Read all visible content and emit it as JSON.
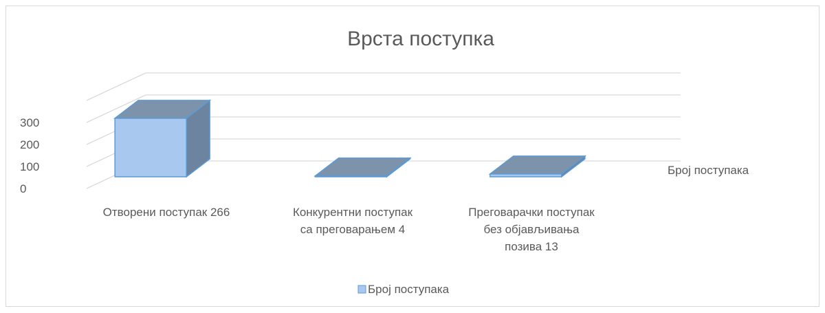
{
  "chart_data": {
    "type": "bar",
    "title": "Врста поступка",
    "categories": [
      [
        "Отворени поступак 266"
      ],
      [
        "Конкурентни поступак",
        "са преговарањем 4"
      ],
      [
        "Преговарачки поступак",
        "без објављивања",
        "позива 13"
      ]
    ],
    "series": [
      {
        "name": "Број поступака",
        "values": [
          266,
          4,
          13
        ]
      }
    ],
    "depth_axis_label": "Број поступака",
    "ylim": [
      0,
      300
    ],
    "yticks": [
      0,
      100,
      200,
      300
    ],
    "grid": true,
    "legend": "bottom",
    "three_d": true,
    "colors": {
      "front": "#a9c8ef",
      "front_stroke": "#5b9bd5",
      "top": "#7d93ab",
      "side": "#6d84a0",
      "grid": "#d9d9d9",
      "text": "#595959"
    }
  }
}
